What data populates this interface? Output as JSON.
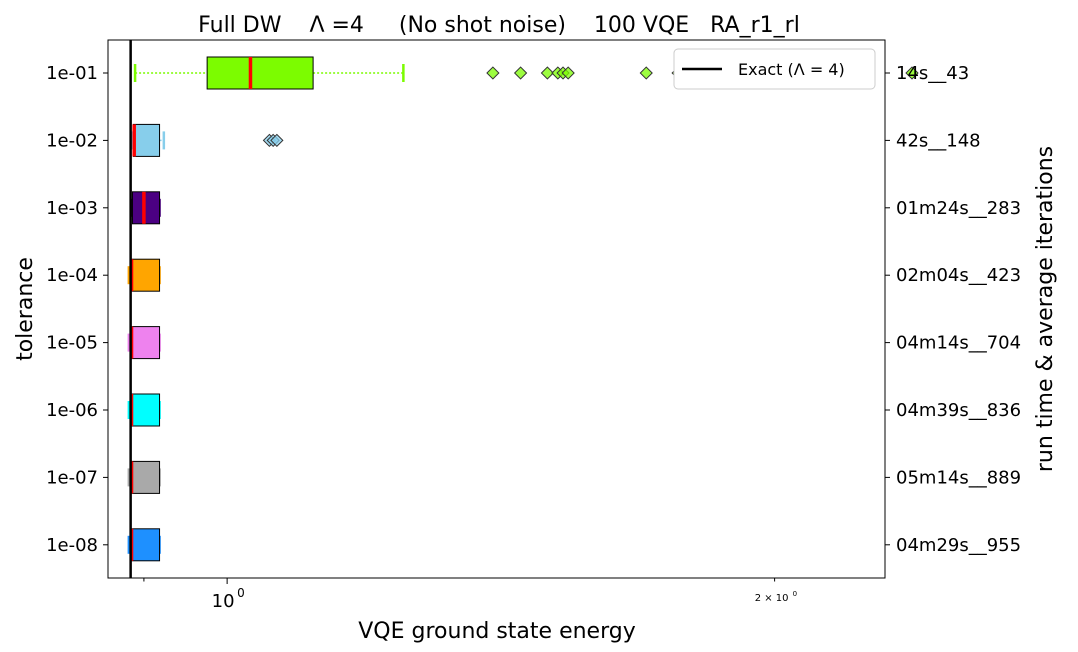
{
  "chart_data": {
    "type": "boxplot",
    "title": "Full DW    Λ =4     (No shot noise)    100 VQE   RA_r1_rl",
    "xlabel": "VQE ground state energy",
    "ylabel": "tolerance",
    "ylabel_right": "run time & average iterations",
    "x_scale": "log",
    "x_ticks": [
      {
        "value": 1.0,
        "label": "10",
        "sup": "0",
        "major": true
      },
      {
        "value": 2.0,
        "label": "2 × 10",
        "sup": "0",
        "major": false
      }
    ],
    "xlim": [
      0.86,
      2.3
    ],
    "exact_value": 0.885,
    "legend": {
      "label": "Exact (Λ = 4)",
      "position": "top-right"
    },
    "categories": [
      {
        "tolerance": "1e-08",
        "right_label": "04m29s__955",
        "color": "#1e90ff",
        "whisker_low": 0.883,
        "q1": 0.886,
        "median": 0.886,
        "q3": 0.918,
        "whisker_high": 0.918,
        "outliers": []
      },
      {
        "tolerance": "1e-07",
        "right_label": "05m14s__889",
        "color": "#a9a9a9",
        "whisker_low": 0.883,
        "q1": 0.886,
        "median": 0.886,
        "q3": 0.918,
        "whisker_high": 0.918,
        "outliers": []
      },
      {
        "tolerance": "1e-06",
        "right_label": "04m39s__836",
        "color": "#00ffff",
        "whisker_low": 0.883,
        "q1": 0.886,
        "median": 0.886,
        "q3": 0.918,
        "whisker_high": 0.918,
        "outliers": []
      },
      {
        "tolerance": "1e-05",
        "right_label": "04m14s__704",
        "color": "#ee82ee",
        "whisker_low": 0.883,
        "q1": 0.886,
        "median": 0.886,
        "q3": 0.918,
        "whisker_high": 0.918,
        "outliers": []
      },
      {
        "tolerance": "1e-04",
        "right_label": "02m04s__423",
        "color": "#ffa500",
        "whisker_low": 0.883,
        "q1": 0.886,
        "median": 0.886,
        "q3": 0.918,
        "whisker_high": 0.918,
        "outliers": []
      },
      {
        "tolerance": "1e-03",
        "right_label": "01m24s__283",
        "color": "#4b0082",
        "whisker_low": 0.886,
        "q1": 0.887,
        "median": 0.9,
        "q3": 0.918,
        "whisker_high": 0.918,
        "outliers": []
      },
      {
        "tolerance": "1e-02",
        "right_label": "42s__148",
        "color": "#87ceeb",
        "whisker_low": 0.887,
        "q1": 0.888,
        "median": 0.889,
        "q3": 0.918,
        "whisker_high": 0.923,
        "outliers": [
          1.055,
          1.06,
          1.065
        ]
      },
      {
        "tolerance": "1e-01",
        "right_label": "14s__43",
        "color": "#7cfc00",
        "whisker_low": 0.89,
        "q1": 0.975,
        "median": 1.03,
        "q3": 1.115,
        "whisker_high": 1.25,
        "outliers": [
          1.4,
          1.45,
          1.5,
          1.52,
          1.53,
          1.54,
          1.7,
          1.77,
          1.79,
          1.8,
          1.805,
          1.88,
          1.97,
          1.98,
          2.06,
          2.38
        ]
      }
    ]
  }
}
